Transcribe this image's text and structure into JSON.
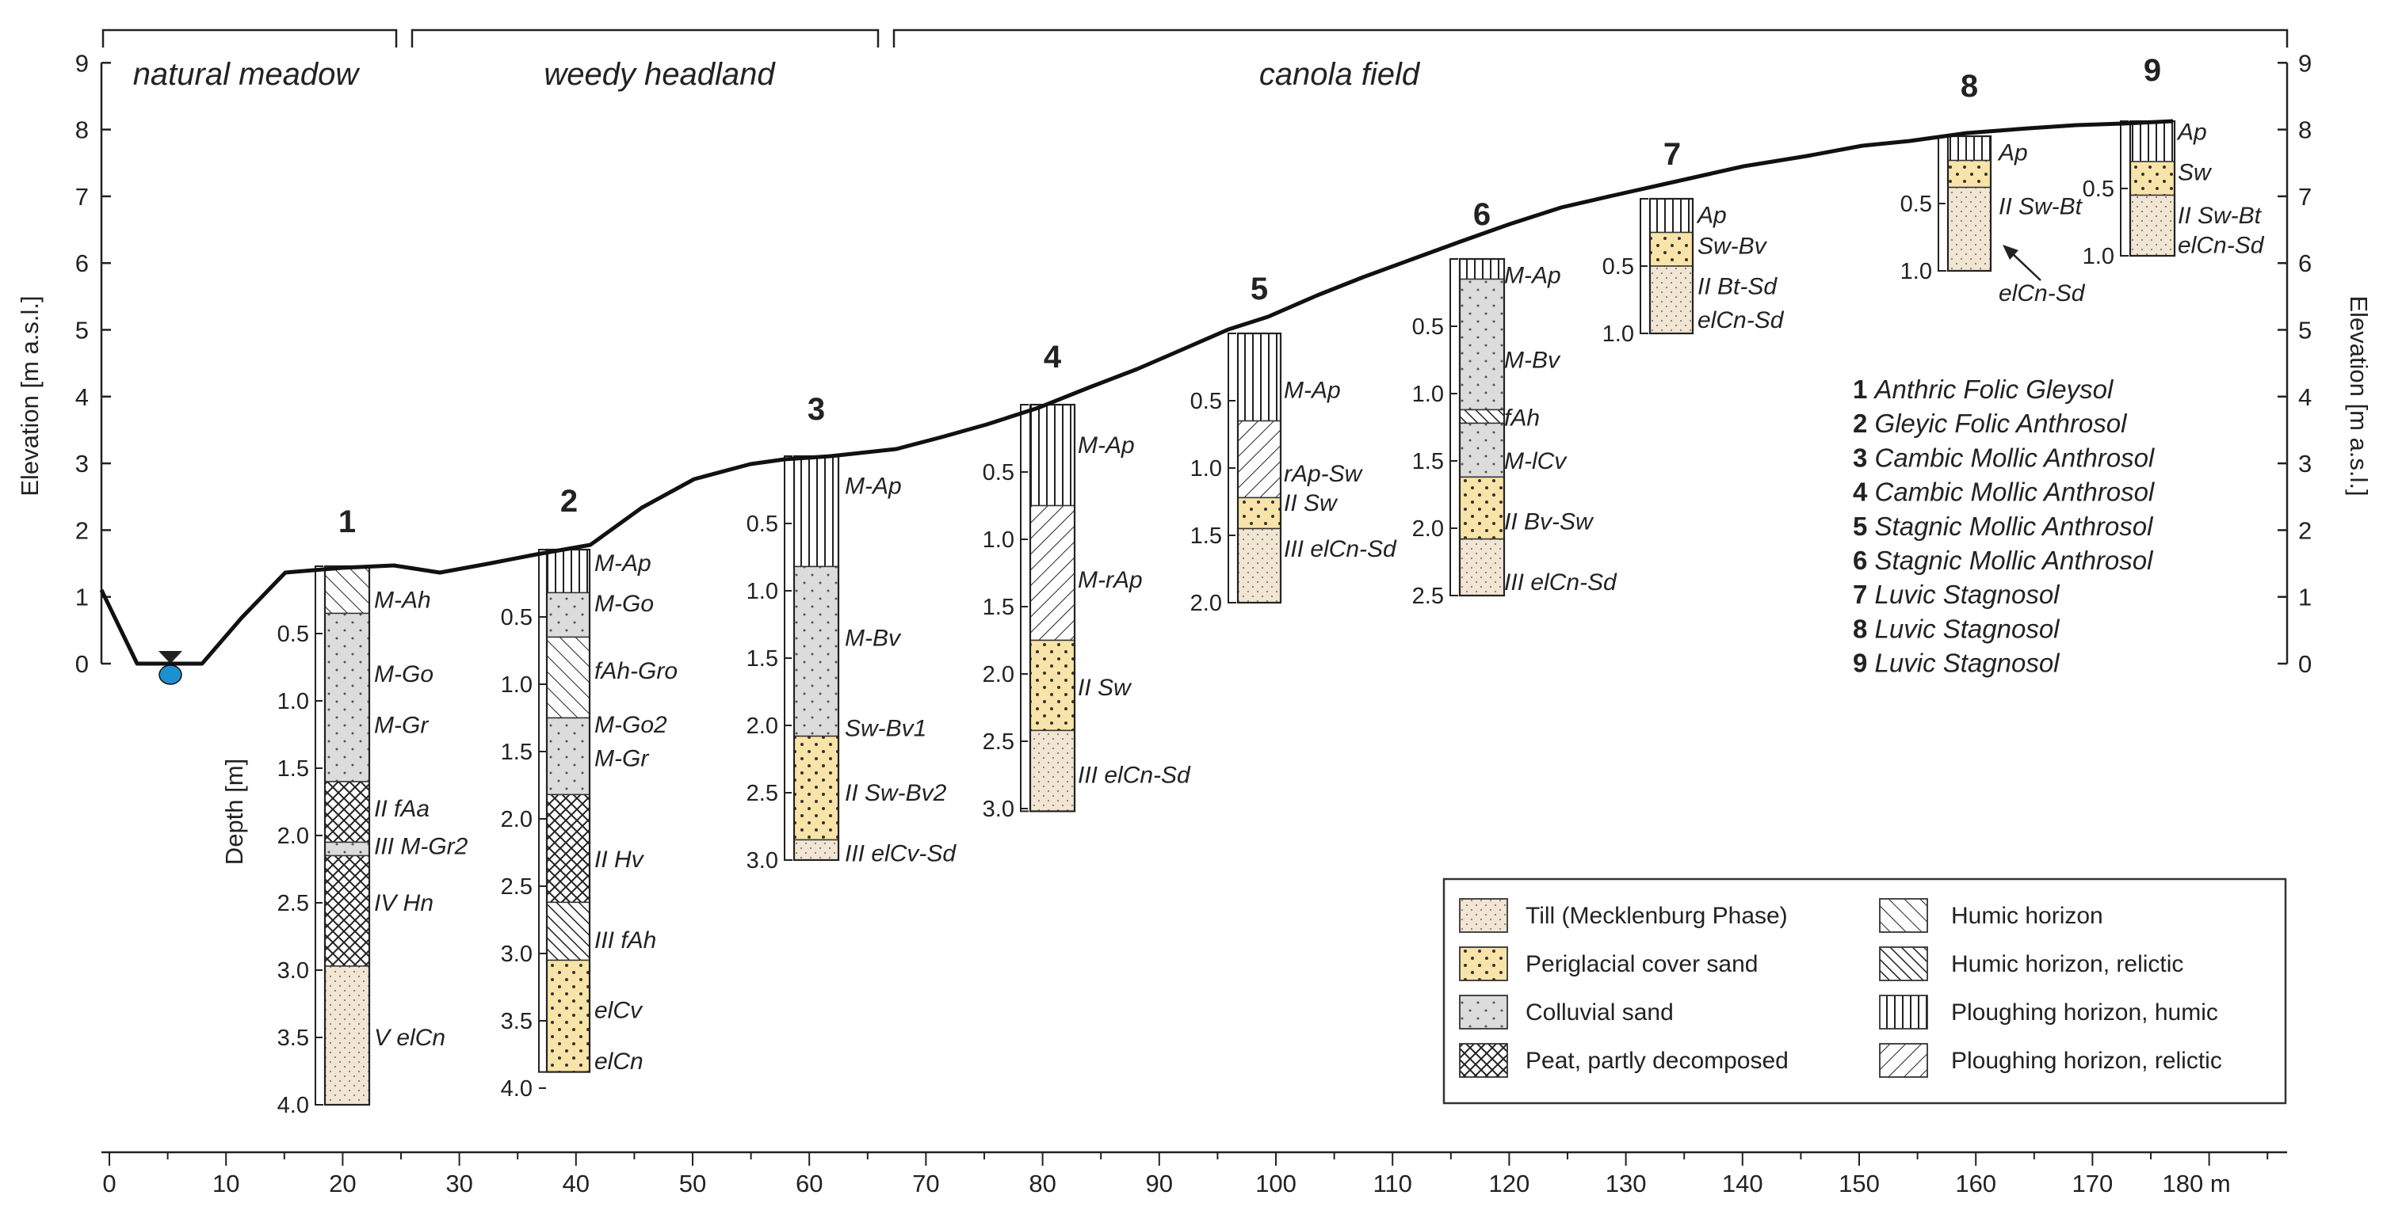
{
  "zones": [
    {
      "label": "natural meadow"
    },
    {
      "label": "weedy headland"
    },
    {
      "label": "canola field"
    }
  ],
  "axes": {
    "y_left_label": "Elevation [m a.s.l.]",
    "y_right_label": "Elevation [m a.s.l.]",
    "y_ticks": [
      "0",
      "1",
      "2",
      "3",
      "4",
      "5",
      "6",
      "7",
      "8",
      "9"
    ],
    "x_ticks": [
      "0",
      "10",
      "20",
      "30",
      "40",
      "50",
      "60",
      "70",
      "80",
      "90",
      "100",
      "110",
      "120",
      "130",
      "140",
      "150",
      "160",
      "170",
      "180 m"
    ],
    "depth_label": "Depth [m]"
  },
  "profiles": [
    {
      "number": "1",
      "depth_ticks": [
        "0.5",
        "1.0",
        "1.5",
        "2.0",
        "2.5",
        "3.0",
        "3.5",
        "4.0"
      ],
      "horizons": [
        "M-Ah",
        "M-Go",
        "M-Gr",
        "II fAa",
        "III M-Gr2",
        "IV Hn",
        "V elCn"
      ]
    },
    {
      "number": "2",
      "depth_ticks": [
        "0.5",
        "1.0",
        "1.5",
        "2.0",
        "2.5",
        "3.0",
        "3.5",
        "4.0"
      ],
      "horizons": [
        "M-Ap",
        "M-Go",
        "fAh-Gro",
        "M-Go2",
        "M-Gr",
        "II Hv",
        "III fAh",
        "elCv",
        "elCn"
      ]
    },
    {
      "number": "3",
      "depth_ticks": [
        "0.5",
        "1.0",
        "1.5",
        "2.0",
        "2.5",
        "3.0"
      ],
      "horizons": [
        "M-Ap",
        "M-Bv",
        "Sw-Bv1",
        "II Sw-Bv2",
        "III elCv-Sd"
      ]
    },
    {
      "number": "4",
      "depth_ticks": [
        "0.5",
        "1.0",
        "1.5",
        "2.0",
        "2.5",
        "3.0"
      ],
      "horizons": [
        "M-Ap",
        "M-rAp",
        "II Sw",
        "III elCn-Sd"
      ]
    },
    {
      "number": "5",
      "depth_ticks": [
        "0.5",
        "1.0",
        "1.5",
        "2.0"
      ],
      "horizons": [
        "M-Ap",
        "rAp-Sw",
        "II Sw",
        "III elCn-Sd"
      ]
    },
    {
      "number": "6",
      "depth_ticks": [
        "0.5",
        "1.0",
        "1.5",
        "2.0",
        "2.5"
      ],
      "horizons": [
        "M-Ap",
        "M-Bv",
        "fAh",
        "M-lCv",
        "II Bv-Sw",
        "III elCn-Sd"
      ]
    },
    {
      "number": "7",
      "depth_ticks": [
        "0.5",
        "1.0"
      ],
      "horizons": [
        "Ap",
        "Sw-Bv",
        "II Bt-Sd",
        "elCn-Sd"
      ]
    },
    {
      "number": "8",
      "depth_ticks": [
        "0.5",
        "1.0"
      ],
      "horizons": [
        "Ap",
        "II Sw-Bt",
        "elCn-Sd"
      ]
    },
    {
      "number": "9",
      "depth_ticks": [
        "0.5",
        "1.0"
      ],
      "horizons": [
        "Ap",
        "Sw",
        "II Sw-Bt",
        "elCn-Sd"
      ]
    }
  ],
  "soil_types": [
    {
      "num": "1",
      "name": "Anthric Folic Gleysol"
    },
    {
      "num": "2",
      "name": "Gleyic Folic Anthrosol"
    },
    {
      "num": "3",
      "name": "Cambic Mollic Anthrosol"
    },
    {
      "num": "4",
      "name": "Cambic Mollic Anthrosol"
    },
    {
      "num": "5",
      "name": "Stagnic Mollic Anthrosol"
    },
    {
      "num": "6",
      "name": "Stagnic Mollic Anthrosol"
    },
    {
      "num": "7",
      "name": "Luvic Stagnosol"
    },
    {
      "num": "8",
      "name": "Luvic Stagnosol"
    },
    {
      "num": "9",
      "name": "Luvic Stagnosol"
    }
  ],
  "legend": {
    "materials": [
      {
        "label": "Till (Mecklenburg Phase)",
        "pattern": "till"
      },
      {
        "label": "Periglacial cover sand",
        "pattern": "sand"
      },
      {
        "label": "Colluvial sand",
        "pattern": "coll"
      },
      {
        "label": "Peat, partly decomposed",
        "pattern": "peat"
      }
    ],
    "horizons": [
      {
        "label": "Humic horizon",
        "pattern": "humic"
      },
      {
        "label": "Humic horizon, relictic",
        "pattern": "humicr"
      },
      {
        "label": "Ploughing horizon, humic",
        "pattern": "plough"
      },
      {
        "label": "Ploughing horizon, relictic",
        "pattern": "ploughr"
      }
    ]
  },
  "colors": {
    "till": "#f1e6d4",
    "sand": "#f8e4a8",
    "colluvial": "#dcdcdc",
    "water": "#1e8fd0",
    "line": "#111111"
  }
}
